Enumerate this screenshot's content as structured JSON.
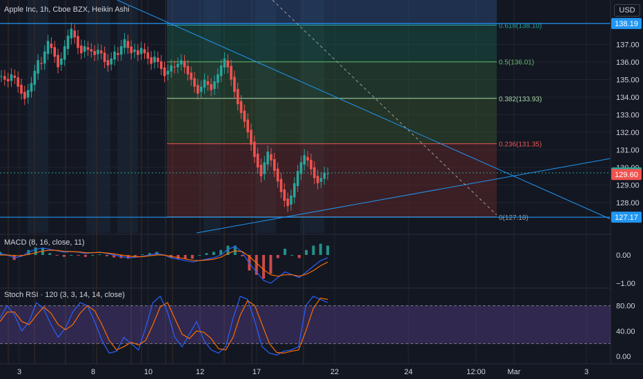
{
  "chart_title": "Apple Inc, 1h, Cboe BZX, Heikin Ashi",
  "currency": "USD",
  "colors": {
    "bg": "#131722",
    "up": "#26a69a",
    "down": "#ef5350",
    "fib": "#2196f3",
    "macd": "#2962ff",
    "signal": "#ff6d00",
    "stoch_k": "#2962ff",
    "stoch_d": "#ff6d00",
    "stoch_band": "#7e57c2"
  },
  "chart_data": [
    {
      "type": "candlestick",
      "title": "Apple Inc, 1h, Cboe BZX, Heikin Ashi",
      "y_ticks": [
        128.0,
        129.0,
        130.0,
        131.0,
        132.0,
        133.0,
        134.0,
        135.0,
        136.0,
        137.0
      ],
      "y_tick_labels": [
        "128.00",
        "129.00",
        "130.00",
        "131.00",
        "132.00",
        "133.00",
        "134.00",
        "135.00",
        "136.00",
        "137.00"
      ],
      "x_tick_labels": [
        "3",
        "8",
        "10",
        "12",
        "17",
        "22",
        "24",
        "12:00",
        "Mar",
        "3"
      ],
      "price_labels": [
        {
          "value": 138.19,
          "label": "138.19",
          "color": "#2196f3"
        },
        {
          "value": 129.69,
          "label": "129.69",
          "color": "#26a69a"
        },
        {
          "value": 129.6,
          "label": "129.60",
          "color": "#ef5350"
        },
        {
          "value": 127.17,
          "label": "127.17",
          "color": "#2196f3"
        }
      ],
      "fib_levels": [
        {
          "ratio": "0.618",
          "price": 138.1,
          "label": "0.618(138.10)"
        },
        {
          "ratio": "0.5",
          "price": 136.01,
          "label": "0.5(136.01)"
        },
        {
          "ratio": "0.382",
          "price": 133.93,
          "label": "0.382(133.93)"
        },
        {
          "ratio": "0.236",
          "price": 131.35,
          "label": "0.236(131.35)"
        },
        {
          "ratio": "0",
          "price": 127.18,
          "label": "0(127.18)"
        }
      ],
      "horizontal_lines": [
        138.19,
        127.17
      ],
      "candles_close": [
        135.2,
        135.0,
        134.9,
        135.3,
        135.1,
        134.6,
        134.2,
        133.9,
        134.4,
        134.8,
        135.5,
        136.1,
        135.9,
        136.6,
        137.2,
        136.8,
        136.3,
        135.7,
        136.2,
        136.9,
        137.5,
        137.9,
        137.4,
        136.8,
        136.5,
        136.9,
        136.7,
        136.6,
        136.4,
        136.7,
        136.5,
        136.0,
        135.8,
        136.2,
        136.6,
        136.4,
        136.9,
        137.3,
        136.8,
        136.5,
        136.7,
        136.4,
        136.8,
        136.5,
        136.2,
        135.9,
        136.3,
        136.0,
        135.6,
        135.2,
        135.5,
        135.8,
        135.7,
        135.9,
        136.1,
        135.7,
        135.3,
        135.0,
        134.6,
        134.2,
        134.6,
        135.0,
        134.7,
        134.4,
        134.9,
        135.3,
        135.8,
        136.2,
        135.7,
        135.0,
        134.3,
        133.6,
        133.1,
        132.6,
        132.0,
        131.3,
        130.6,
        130.0,
        129.5,
        130.3,
        130.9,
        130.4,
        129.8,
        129.2,
        128.6,
        128.1,
        127.8,
        128.4,
        129.1,
        129.8,
        130.3,
        130.7,
        130.4,
        129.9,
        129.4,
        129.1,
        129.4,
        129.7,
        129.65
      ]
    },
    {
      "type": "line",
      "title": "MACD (8, 16, close, 11)",
      "y_ticks": [
        0.0,
        -1.0
      ],
      "y_tick_labels": [
        "0.00",
        "−1.00"
      ],
      "series": [
        {
          "name": "MACD",
          "values": [
            0.05,
            0.0,
            -0.1,
            -0.05,
            0.1,
            0.2,
            0.25,
            0.2,
            0.15,
            0.1,
            0.12,
            0.1,
            0.05,
            0.08,
            0.1,
            0.05,
            0.0,
            -0.05,
            -0.1,
            -0.08,
            -0.05,
            0.0,
            0.05,
            0.0,
            -0.1,
            -0.15,
            -0.2,
            -0.25,
            -0.2,
            -0.15,
            -0.1,
            0.0,
            0.2,
            0.3,
            0.1,
            -0.3,
            -0.6,
            -0.9,
            -1.0,
            -0.8,
            -0.6,
            -0.7,
            -0.8,
            -0.6,
            -0.4,
            -0.2,
            -0.1
          ]
        },
        {
          "name": "Signal",
          "values": [
            0.0,
            0.0,
            -0.02,
            -0.03,
            0.02,
            0.08,
            0.14,
            0.17,
            0.16,
            0.13,
            0.12,
            0.11,
            0.08,
            0.08,
            0.09,
            0.07,
            0.04,
            0.0,
            -0.04,
            -0.06,
            -0.06,
            -0.03,
            0.0,
            0.0,
            -0.05,
            -0.09,
            -0.14,
            -0.19,
            -0.2,
            -0.18,
            -0.15,
            -0.08,
            0.05,
            0.15,
            0.12,
            -0.05,
            -0.28,
            -0.52,
            -0.7,
            -0.75,
            -0.7,
            -0.7,
            -0.75,
            -0.68,
            -0.55,
            -0.38,
            -0.25
          ]
        }
      ]
    },
    {
      "type": "line",
      "title": "Stoch RSI · 120 (3, 3, 14, 14, close)",
      "y_ticks": [
        80.0,
        40.0,
        0.0
      ],
      "y_tick_labels": [
        "80.00",
        "40.00",
        "0.00"
      ],
      "band": [
        20,
        80
      ],
      "series": [
        {
          "name": "K",
          "values": [
            60,
            80,
            65,
            40,
            55,
            85,
            75,
            50,
            30,
            45,
            70,
            85,
            80,
            55,
            25,
            5,
            8,
            30,
            20,
            10,
            45,
            85,
            95,
            70,
            30,
            15,
            35,
            55,
            25,
            10,
            5,
            15,
            60,
            95,
            90,
            55,
            15,
            5,
            2,
            8,
            10,
            15,
            80,
            95,
            90,
            85
          ]
        },
        {
          "name": "D",
          "values": [
            55,
            70,
            70,
            55,
            50,
            65,
            78,
            68,
            50,
            42,
            50,
            68,
            80,
            72,
            50,
            25,
            10,
            15,
            22,
            18,
            25,
            50,
            78,
            85,
            60,
            35,
            28,
            40,
            38,
            28,
            12,
            10,
            30,
            65,
            88,
            80,
            50,
            20,
            6,
            5,
            8,
            10,
            40,
            75,
            92,
            90
          ]
        }
      ]
    }
  ]
}
